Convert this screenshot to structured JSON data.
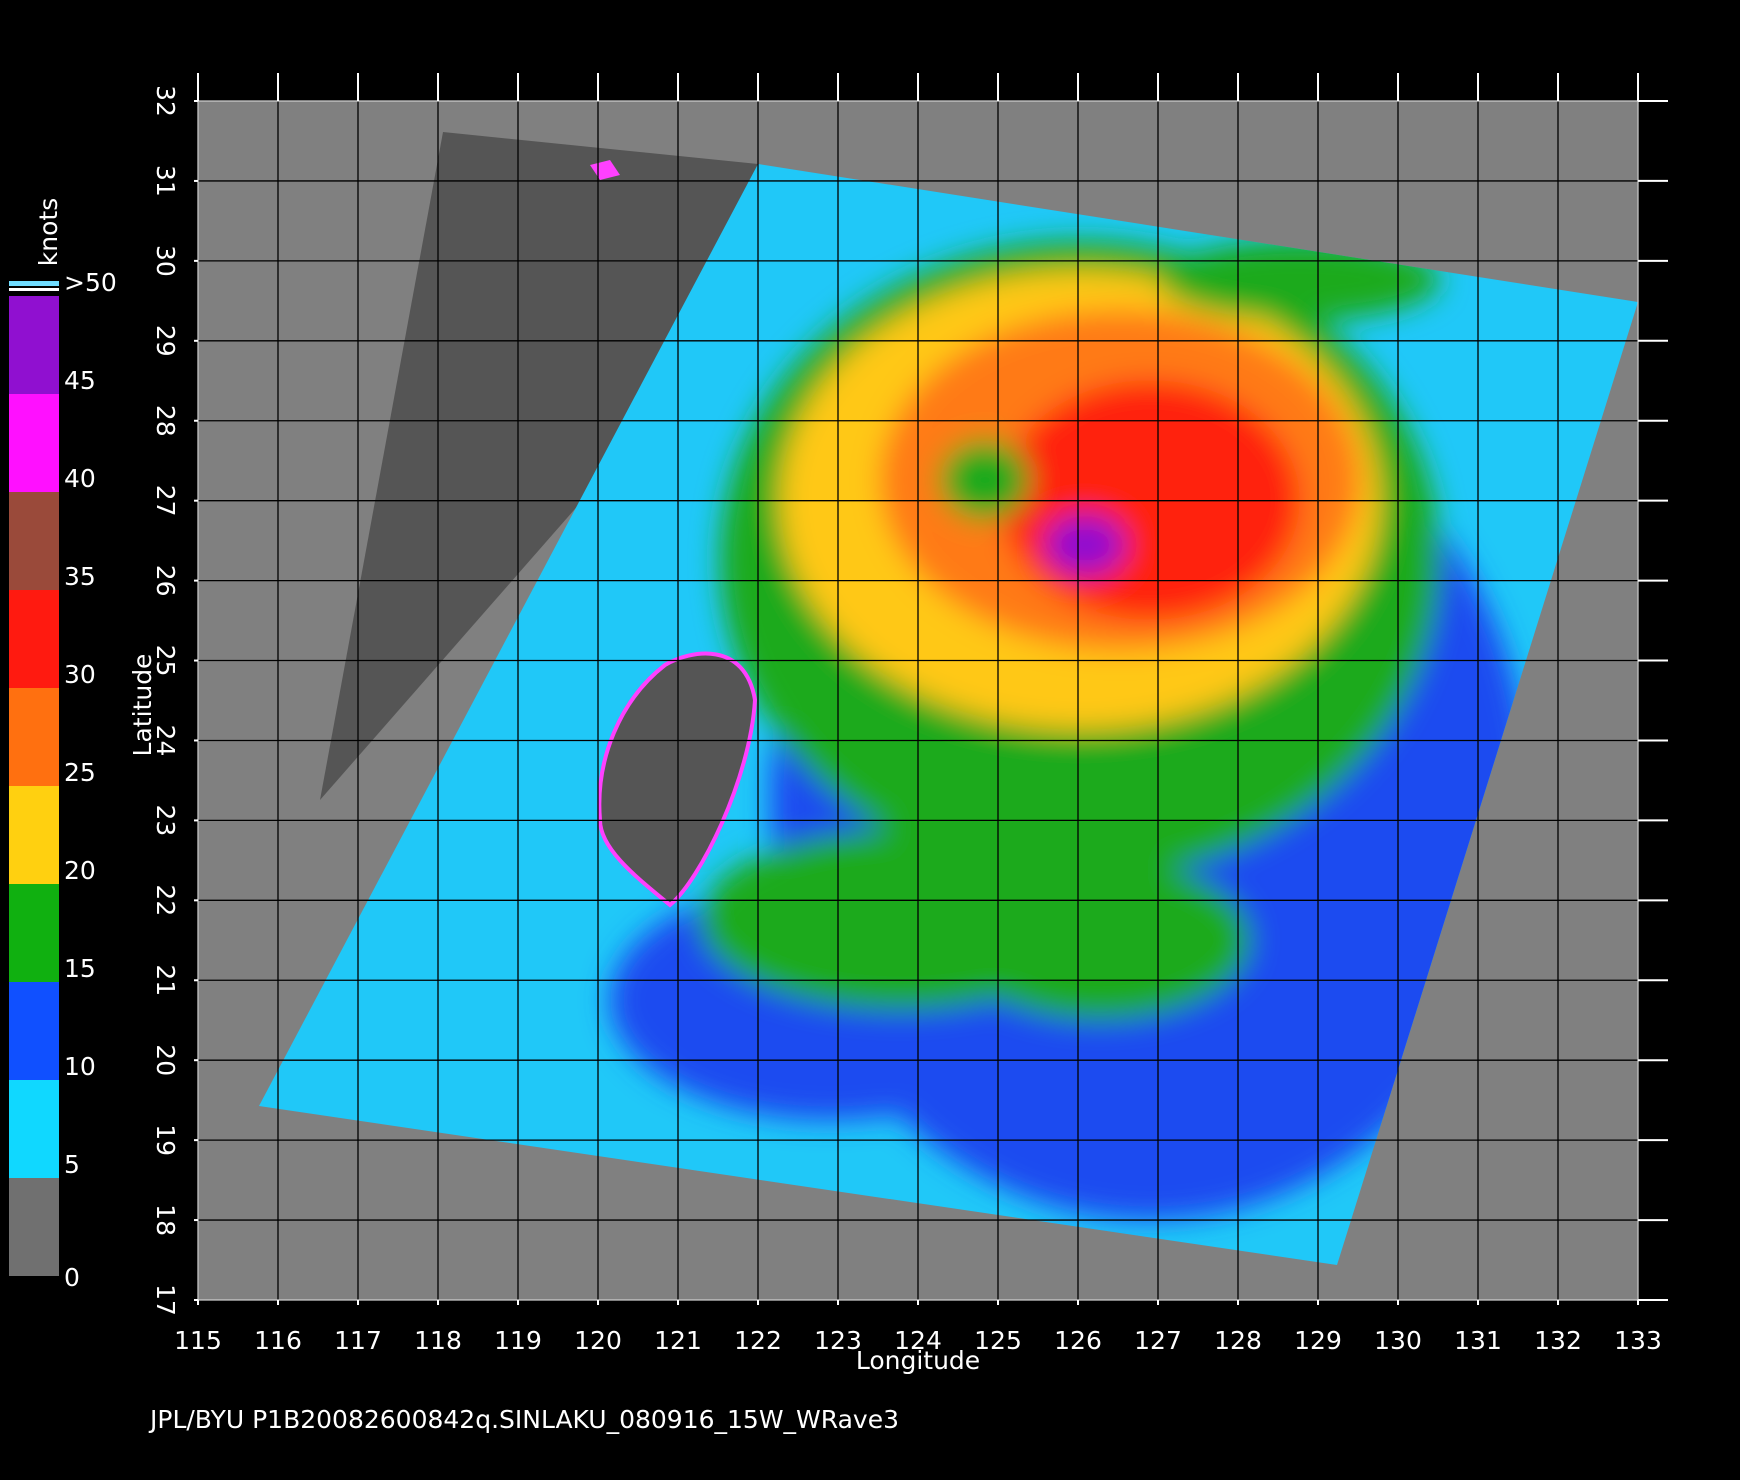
{
  "map": {
    "xlabel": "Longitude",
    "ylabel": "Latitude",
    "xlim": [
      115,
      133
    ],
    "ylim": [
      17,
      32
    ],
    "xticks": [
      115,
      116,
      117,
      118,
      119,
      120,
      121,
      122,
      123,
      124,
      125,
      126,
      127,
      128,
      129,
      130,
      131,
      132,
      133
    ],
    "yticks": [
      17,
      18,
      19,
      20,
      21,
      22,
      23,
      24,
      25,
      26,
      27,
      28,
      29,
      30,
      31,
      32
    ]
  },
  "colorbar": {
    "label": "knots",
    "range": [
      0,
      50
    ],
    "ticks": [
      0,
      5,
      10,
      15,
      20,
      25,
      30,
      35,
      40,
      45,
      {
        "value": 50,
        "label": ">50"
      }
    ],
    "colors": [
      "#707070",
      "#10d8ff",
      "#1050ff",
      "#10b010",
      "#ffd010",
      "#ff7010",
      "#ff1a10",
      "#9a4a3a",
      "#ff10ff",
      "#9010d0"
    ]
  },
  "footer": "JPL/BYU  P1B20082600842q.SINLAKU_080916_15W_WRave3"
}
